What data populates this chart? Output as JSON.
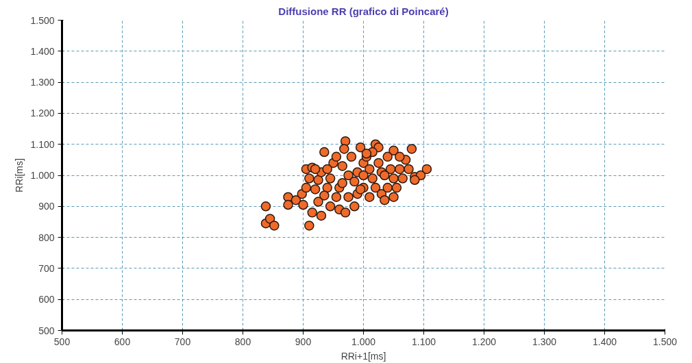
{
  "chart_data": {
    "type": "scatter",
    "title": "Diffusione RR (grafico di Poincaré)",
    "xlabel": "RRi+1[ms]",
    "ylabel": "RRi[ms]",
    "xlim": [
      500,
      1500
    ],
    "ylim": [
      500,
      1500
    ],
    "xticks": [
      500,
      600,
      700,
      800,
      900,
      {
        "value": 1000,
        "label": "1.000"
      },
      {
        "value": 1100,
        "label": "1.100"
      },
      {
        "value": 1200,
        "label": "1.200"
      },
      {
        "value": 1300,
        "label": "1.300"
      },
      {
        "value": 1400,
        "label": "1.400"
      },
      {
        "value": 1500,
        "label": "1.500"
      }
    ],
    "yticks": [
      500,
      600,
      700,
      800,
      900,
      {
        "value": 1000,
        "label": "1.000"
      },
      {
        "value": 1100,
        "label": "1.100"
      },
      {
        "value": 1200,
        "label": "1.200"
      },
      {
        "value": 1300,
        "label": "1.300"
      },
      {
        "value": 1400,
        "label": "1.400"
      },
      {
        "value": 1500,
        "label": "1.500"
      }
    ],
    "grid": true,
    "marker": "circle",
    "series": [
      {
        "color": "#f06a2a",
        "x": [
          838,
          838,
          845,
          852,
          875,
          875,
          888,
          898,
          905,
          910,
          905,
          915,
          935,
          970,
          968,
          1020,
          1025,
          1050,
          1080,
          1085,
          1095,
          1105,
          1060,
          1070,
          1040,
          915,
          930,
          945,
          960,
          955,
          940,
          925,
          930,
          950,
          965,
          975,
          985,
          990,
          1000,
          1005,
          1010,
          1015,
          1020,
          1030,
          1040,
          1050,
          1045,
          1000,
          990,
          975,
          960,
          945,
          935,
          920,
          925,
          900,
          910,
          980,
          995,
          1030,
          1055,
          1050,
          1035,
          985,
          970,
          1010,
          1000,
          1025,
          1065,
          1075,
          955,
          1015,
          940,
          1060,
          1035,
          1005,
          965,
          995,
          920,
          1085
        ],
        "values": [
          900,
          845,
          860,
          838,
          930,
          905,
          920,
          940,
          960,
          838,
          1020,
          1025,
          1075,
          1110,
          1085,
          1100,
          1090,
          1080,
          1085,
          995,
          1000,
          1020,
          1020,
          1050,
          1060,
          880,
          870,
          900,
          890,
          930,
          960,
          985,
          1010,
          1040,
          1030,
          1000,
          980,
          1010,
          1040,
          1060,
          1020,
          990,
          960,
          940,
          960,
          990,
          1020,
          960,
          940,
          930,
          960,
          990,
          935,
          955,
          915,
          905,
          990,
          1060,
          1090,
          1010,
          960,
          930,
          920,
          900,
          880,
          930,
          1000,
          1040,
          990,
          1020,
          1060,
          1075,
          1020,
          1060,
          1000,
          1070,
          975,
          955,
          1020,
          985
        ]
      }
    ]
  }
}
